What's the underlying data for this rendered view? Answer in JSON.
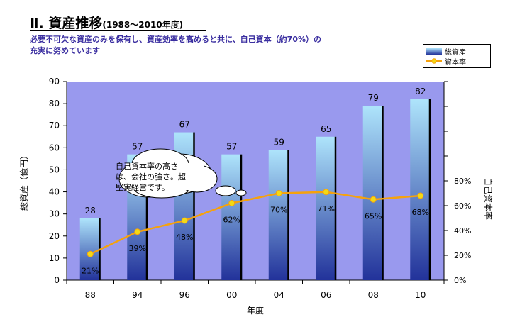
{
  "header": {
    "title": "Ⅱ. 資産推移",
    "title_years": "(1988～2010年度)",
    "subtitle_line1": "必要不可欠な資産のみを保有し、資産効率を高めると共に、自己資本（約70%）の",
    "subtitle_line2": "充実に努めています"
  },
  "callout": {
    "line1": "自己資本率の高さ",
    "line2": "は、会社の強さ。超",
    "line3": "堅実経営です。"
  },
  "legend": {
    "total_assets": "総資産",
    "equity_ratio": "資本率"
  },
  "colors": {
    "plot_bg": "#9999ee",
    "bar_top": "#aee4fb",
    "bar_bottom": "#22329a",
    "line": "#f5a20d",
    "marker": "#f3da14"
  },
  "chart_data": {
    "type": "bar",
    "categories": [
      "88",
      "94",
      "96",
      "00",
      "04",
      "06",
      "08",
      "10"
    ],
    "series": [
      {
        "name": "総資産",
        "type": "bar",
        "axis": "left",
        "values": [
          28,
          57,
          67,
          57,
          59,
          65,
          79,
          82
        ]
      },
      {
        "name": "資本率",
        "type": "line",
        "axis": "right",
        "unit": "%",
        "values": [
          21,
          39,
          48,
          62,
          70,
          71,
          65,
          68
        ]
      }
    ],
    "xlabel": "年度",
    "ylabel": "総資産（億円）",
    "y2label": "自己資本率",
    "ylim": [
      0,
      90
    ],
    "yticks": [
      0,
      10,
      20,
      30,
      40,
      50,
      60,
      70,
      80,
      90
    ],
    "y2lim": [
      0,
      160
    ],
    "y2ticks": [
      0,
      20,
      40,
      60,
      80
    ],
    "y2ticklabels": [
      "0%",
      "20%",
      "40%",
      "60%",
      "80%"
    ],
    "grid": false,
    "legend_position": "top-right"
  }
}
